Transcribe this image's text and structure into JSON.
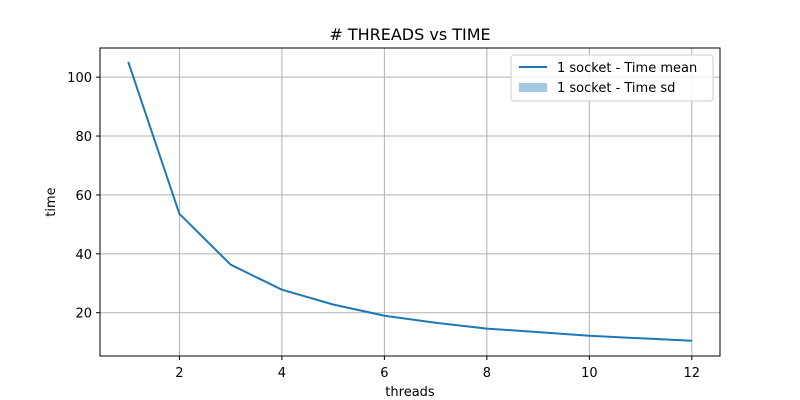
{
  "chart_data": {
    "type": "line",
    "title": "# THREADS vs TIME",
    "xlabel": "threads",
    "ylabel": "time",
    "xlim": [
      0.45,
      12.55
    ],
    "ylim": [
      5.3,
      109.9
    ],
    "xticks": [
      2,
      4,
      6,
      8,
      10,
      12
    ],
    "yticks": [
      20,
      40,
      60,
      80,
      100
    ],
    "grid": true,
    "legend_position": "top-right",
    "series": [
      {
        "name": "1 socket - Time mean",
        "color": "#1f77b4",
        "x": [
          1,
          2,
          3,
          4,
          5,
          6,
          7,
          8,
          9,
          10,
          11,
          12
        ],
        "y": [
          105.2,
          53.6,
          36.3,
          27.8,
          22.8,
          19.0,
          16.6,
          14.6,
          13.4,
          12.2,
          11.3,
          10.5
        ]
      }
    ],
    "sd_band": {
      "name": "1 socket - Time sd",
      "color": "#1f77b4",
      "opacity": 0.4
    }
  }
}
